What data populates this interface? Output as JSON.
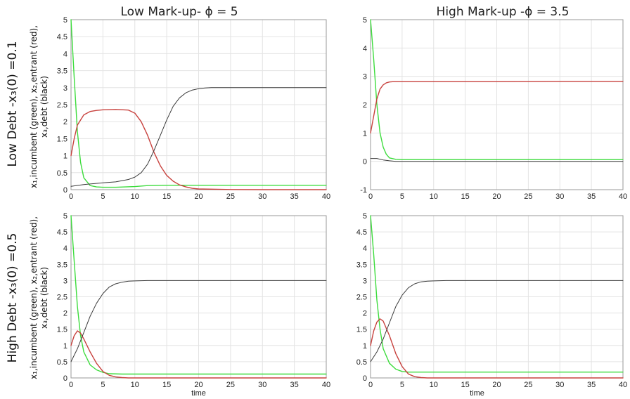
{
  "figure": {
    "col_titles": [
      "Low Mark-up- ϕ = 5",
      "High Mark-up -ϕ = 3.5"
    ],
    "row_titles": [
      "Low Debt -x₃(0) =0.1",
      "High Debt -x₃(0) =0.5"
    ],
    "ylabel_line1": "x₁,incumbent (green), x₂,entrant (red),",
    "ylabel_line2": "x₃,debt (black)"
  },
  "colors": {
    "incumbent": "#3ddc3d",
    "entrant": "#c8423e",
    "debt": "#3a3a3a"
  },
  "chart_data": [
    {
      "type": "line",
      "panel": "top-left",
      "title": "Low Mark-up- ϕ = 5",
      "xlabel": "",
      "ylabel": "",
      "xlim": [
        0,
        40
      ],
      "ylim": [
        0,
        5
      ],
      "xticks": [
        0,
        5,
        10,
        15,
        20,
        25,
        30,
        35,
        40
      ],
      "yticks": [
        0,
        0.5,
        1,
        1.5,
        2,
        2.5,
        3,
        3.5,
        4,
        4.5,
        5
      ],
      "grid": true,
      "series": [
        {
          "color": "#3ddc3d",
          "x": [
            0,
            0.5,
            1,
            1.5,
            2,
            3,
            4,
            5,
            7,
            10,
            12,
            15,
            20,
            30,
            40
          ],
          "y": [
            5,
            3.3,
            1.7,
            0.8,
            0.35,
            0.12,
            0.08,
            0.07,
            0.07,
            0.09,
            0.12,
            0.13,
            0.13,
            0.13,
            0.13
          ]
        },
        {
          "color": "#c8423e",
          "x": [
            0,
            0.5,
            1,
            2,
            3,
            4,
            5,
            7,
            9,
            10,
            11,
            12,
            13,
            14,
            15,
            16,
            17,
            18,
            19,
            20,
            25,
            30,
            40
          ],
          "y": [
            1,
            1.5,
            1.9,
            2.2,
            2.3,
            2.33,
            2.35,
            2.36,
            2.34,
            2.25,
            2.0,
            1.6,
            1.1,
            0.7,
            0.42,
            0.25,
            0.14,
            0.08,
            0.04,
            0.02,
            0.005,
            0,
            0
          ]
        },
        {
          "color": "#3a3a3a",
          "x": [
            0,
            2,
            5,
            7,
            9,
            10,
            11,
            12,
            13,
            14,
            15,
            16,
            17,
            18,
            19,
            20,
            21,
            22,
            25,
            30,
            40
          ],
          "y": [
            0.1,
            0.15,
            0.2,
            0.23,
            0.3,
            0.37,
            0.5,
            0.75,
            1.15,
            1.6,
            2.05,
            2.45,
            2.7,
            2.85,
            2.93,
            2.97,
            2.99,
            3.0,
            3.0,
            3.0,
            3.0
          ]
        }
      ]
    },
    {
      "type": "line",
      "panel": "top-right",
      "title": "High Mark-up -ϕ = 3.5",
      "xlabel": "",
      "ylabel": "",
      "xlim": [
        0,
        40
      ],
      "ylim": [
        -1,
        5
      ],
      "xticks": [
        0,
        5,
        10,
        15,
        20,
        25,
        30,
        35,
        40
      ],
      "yticks": [
        -1,
        0,
        1,
        2,
        3,
        4,
        5
      ],
      "grid": true,
      "series": [
        {
          "color": "#3ddc3d",
          "x": [
            0,
            0.5,
            1,
            1.5,
            2,
            2.5,
            3,
            4,
            5,
            10,
            20,
            30,
            40
          ],
          "y": [
            5,
            3.6,
            2.0,
            1.0,
            0.5,
            0.25,
            0.12,
            0.07,
            0.06,
            0.06,
            0.06,
            0.06,
            0.06
          ]
        },
        {
          "color": "#c8423e",
          "x": [
            0,
            0.5,
            1,
            1.5,
            2,
            2.5,
            3,
            3.5,
            4,
            10,
            20,
            30,
            40
          ],
          "y": [
            1,
            1.6,
            2.2,
            2.55,
            2.7,
            2.77,
            2.8,
            2.81,
            2.81,
            2.81,
            2.81,
            2.82,
            2.82
          ]
        },
        {
          "color": "#3a3a3a",
          "x": [
            0,
            1,
            2,
            3,
            4,
            5,
            10,
            20,
            30,
            40
          ],
          "y": [
            0.1,
            0.1,
            0.05,
            0.02,
            0.0,
            0.0,
            0.0,
            0.0,
            0.0,
            0.0
          ]
        }
      ]
    },
    {
      "type": "line",
      "panel": "bottom-left",
      "title": "",
      "xlabel": "time",
      "ylabel": "",
      "xlim": [
        0,
        40
      ],
      "ylim": [
        0,
        5
      ],
      "xticks": [
        0,
        5,
        10,
        15,
        20,
        25,
        30,
        35,
        40
      ],
      "yticks": [
        0,
        0.5,
        1,
        1.5,
        2,
        2.5,
        3,
        3.5,
        4,
        4.5,
        5
      ],
      "grid": true,
      "series": [
        {
          "color": "#3ddc3d",
          "x": [
            0,
            0.5,
            1,
            1.5,
            2,
            3,
            4,
            5,
            6,
            8,
            10,
            20,
            30,
            40
          ],
          "y": [
            5,
            3.6,
            2.2,
            1.3,
            0.8,
            0.4,
            0.25,
            0.17,
            0.13,
            0.12,
            0.12,
            0.12,
            0.12,
            0.12
          ]
        },
        {
          "color": "#c8423e",
          "x": [
            0,
            0.5,
            1,
            1.5,
            2,
            3,
            4,
            5,
            6,
            7,
            8,
            9,
            10,
            15,
            40
          ],
          "y": [
            1,
            1.3,
            1.45,
            1.38,
            1.2,
            0.8,
            0.45,
            0.2,
            0.08,
            0.03,
            0.01,
            0,
            0,
            0,
            0
          ]
        },
        {
          "color": "#3a3a3a",
          "x": [
            0,
            1,
            2,
            3,
            4,
            5,
            6,
            7,
            8,
            9,
            10,
            12,
            15,
            20,
            30,
            40
          ],
          "y": [
            0.5,
            0.9,
            1.4,
            1.9,
            2.3,
            2.6,
            2.8,
            2.9,
            2.95,
            2.98,
            2.99,
            3.0,
            3.0,
            3.0,
            3.0,
            3.0
          ]
        }
      ]
    },
    {
      "type": "line",
      "panel": "bottom-right",
      "title": "",
      "xlabel": "time",
      "ylabel": "",
      "xlim": [
        0,
        40
      ],
      "ylim": [
        0,
        5
      ],
      "xticks": [
        0,
        5,
        10,
        15,
        20,
        25,
        30,
        35,
        40
      ],
      "yticks": [
        0,
        0.5,
        1,
        1.5,
        2,
        2.5,
        3,
        3.5,
        4,
        4.5,
        5
      ],
      "grid": true,
      "series": [
        {
          "color": "#3ddc3d",
          "x": [
            0,
            0.5,
            1,
            1.5,
            2,
            3,
            4,
            5,
            6,
            8,
            10,
            20,
            30,
            40
          ],
          "y": [
            5,
            3.8,
            2.4,
            1.5,
            0.9,
            0.45,
            0.27,
            0.2,
            0.18,
            0.18,
            0.18,
            0.18,
            0.18,
            0.18
          ]
        },
        {
          "color": "#c8423e",
          "x": [
            0,
            0.5,
            1,
            1.5,
            2,
            3,
            4,
            5,
            6,
            7,
            8,
            9,
            10,
            40
          ],
          "y": [
            1,
            1.45,
            1.72,
            1.82,
            1.75,
            1.3,
            0.75,
            0.35,
            0.12,
            0.04,
            0.01,
            0,
            0,
            0
          ]
        },
        {
          "color": "#3a3a3a",
          "x": [
            0,
            1,
            2,
            3,
            4,
            5,
            6,
            7,
            8,
            9,
            10,
            12,
            15,
            20,
            30,
            40
          ],
          "y": [
            0.5,
            0.8,
            1.2,
            1.7,
            2.2,
            2.55,
            2.78,
            2.9,
            2.96,
            2.98,
            2.99,
            3.0,
            3.0,
            3.0,
            3.0,
            3.0
          ]
        }
      ]
    }
  ]
}
